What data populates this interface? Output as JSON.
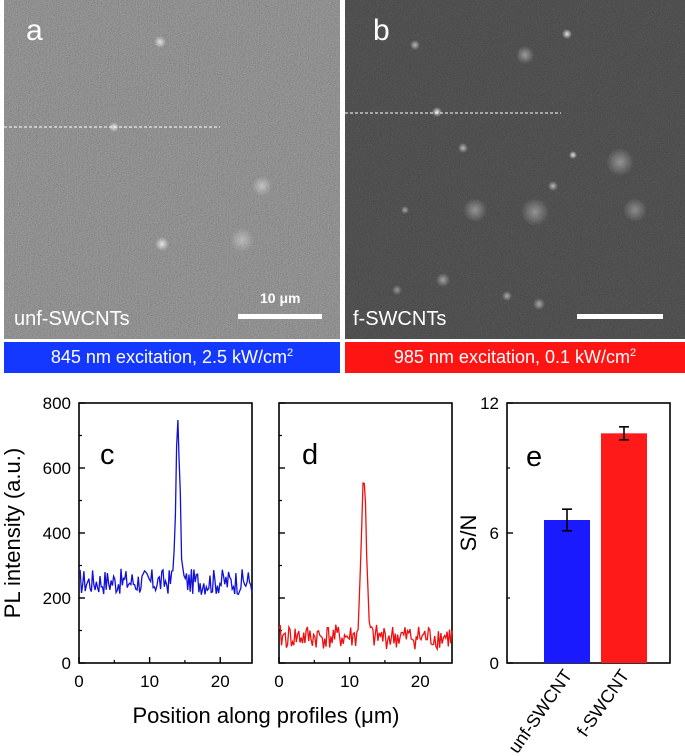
{
  "panels": {
    "a": {
      "letter": "a",
      "sample": "unf-SWCNTs",
      "scale_bar": "10 μm",
      "excitation": {
        "text": "845 nm excitation, 2.5 kW/cm",
        "sup": "2",
        "color": "#1438ff"
      }
    },
    "b": {
      "letter": "b",
      "sample": "f-SWCNTs",
      "excitation": {
        "text": "985 nm excitation, 0.1 kW/cm",
        "sup": "2",
        "color": "#ff1414"
      }
    },
    "c": {
      "letter": "c"
    },
    "d": {
      "letter": "d"
    },
    "e": {
      "letter": "e"
    }
  },
  "colors": {
    "unf": "#1010d8",
    "f": "#ee1010",
    "bar_unf": "#1a1aff",
    "bar_f": "#ff1a1a"
  },
  "chart_data": [
    {
      "id": "c",
      "type": "line",
      "ylabel": "PL intensity (a.u.)",
      "xlim": [
        0,
        24.5
      ],
      "ylim": [
        0,
        800
      ],
      "x_ticks": [
        0,
        10,
        20
      ],
      "y_ticks": [
        0,
        200,
        400,
        600,
        800
      ],
      "series": [
        {
          "name": "unf-SWCNTs",
          "color": "#1010d8",
          "baseline": 250,
          "noise": 40,
          "peaks": [
            {
              "x": 14.0,
              "height": 470,
              "width": 0.3
            }
          ]
        }
      ]
    },
    {
      "id": "d",
      "type": "line",
      "xlim": [
        0,
        24.5
      ],
      "ylim": [
        0,
        800
      ],
      "x_ticks": [
        0,
        10,
        20
      ],
      "series": [
        {
          "name": "f-SWCNTs",
          "color": "#ee1010",
          "baseline": 80,
          "noise": 38,
          "peaks": [
            {
              "x": 12.0,
              "height": 500,
              "width": 0.35
            }
          ]
        }
      ]
    },
    {
      "id": "e",
      "type": "bar",
      "ylabel": "S/N",
      "ylim": [
        0,
        12
      ],
      "y_ticks": [
        0,
        6,
        12
      ],
      "categories": [
        "unf-SWCNT",
        "f-SWCNT"
      ],
      "values": [
        6.6,
        10.6
      ],
      "errors": [
        0.5,
        0.3
      ],
      "colors": [
        "#1a1aff",
        "#ff1a1a"
      ]
    }
  ],
  "shared_xlabel": "Position along profiles (μm)"
}
